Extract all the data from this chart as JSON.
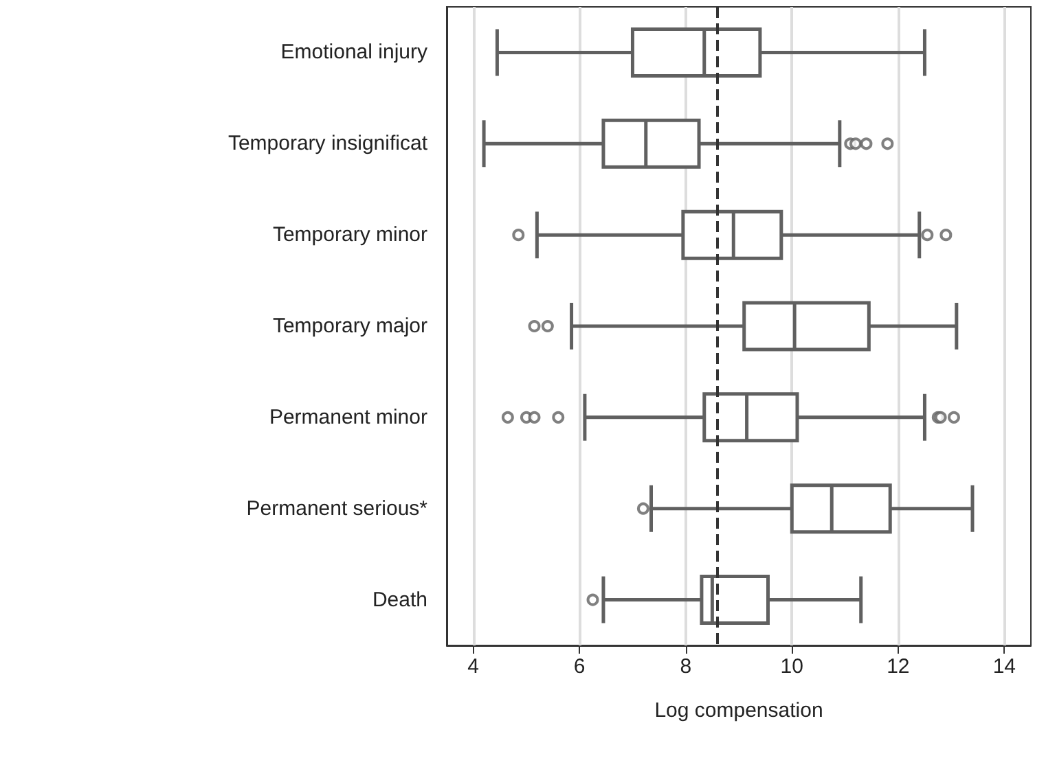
{
  "chart_data": {
    "type": "box",
    "orientation": "horizontal",
    "xlabel": "Log compensation",
    "categories": [
      "Emotional injury",
      "Temporary insignificat",
      "Temporary minor",
      "Temporary major",
      "Permanent minor",
      "Permanent serious*",
      "Death"
    ],
    "series": [
      {
        "color": "#606060",
        "boxes": [
          {
            "low": 4.45,
            "q1": 7.0,
            "median": 8.35,
            "q3": 9.4,
            "high": 12.5
          },
          {
            "low": 4.2,
            "q1": 6.45,
            "median": 7.25,
            "q3": 8.25,
            "high": 10.9,
            "outliers": [
              11.1,
              11.2,
              11.4,
              11.8
            ]
          },
          {
            "low": 5.2,
            "q1": 7.95,
            "median": 8.9,
            "q3": 9.8,
            "high": 12.4,
            "outliers": [
              4.85,
              12.55,
              12.9
            ]
          },
          {
            "low": 5.85,
            "q1": 9.1,
            "median": 10.05,
            "q3": 11.45,
            "high": 13.1,
            "outliers": [
              5.15,
              5.4
            ]
          },
          {
            "low": 6.1,
            "q1": 8.35,
            "median": 9.15,
            "q3": 10.1,
            "high": 12.5,
            "outliers": [
              4.65,
              5.0,
              5.15,
              5.6,
              12.75,
              12.8,
              13.05
            ]
          },
          {
            "low": 7.35,
            "q1": 10.0,
            "median": 10.75,
            "q3": 11.85,
            "high": 13.4,
            "outliers": [
              7.2
            ]
          },
          {
            "low": 6.45,
            "q1": 8.3,
            "median": 8.5,
            "q3": 9.55,
            "high": 11.3,
            "outliers": [
              6.25
            ]
          }
        ]
      }
    ],
    "xlim": [
      3.5,
      14.5
    ],
    "xticks": [
      4,
      6,
      8,
      10,
      12,
      14
    ],
    "grid": "x",
    "ref_lines": [
      {
        "axis": "x",
        "value": 8.6,
        "line_style": "dashed",
        "color": "#333333"
      }
    ]
  }
}
